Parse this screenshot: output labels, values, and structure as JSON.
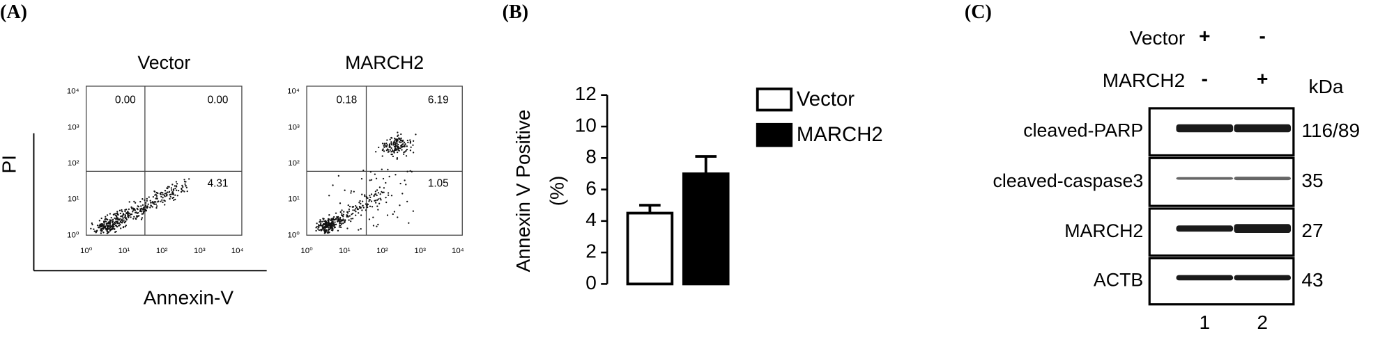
{
  "panel_labels": [
    "(A)",
    "(B)",
    "(C)"
  ],
  "panel_a": {
    "y_label": "PI",
    "x_label": "Annexin-V",
    "ticks": [
      "10⁰",
      "10¹",
      "10²",
      "10³",
      "10⁴"
    ],
    "plots": [
      {
        "title": "Vector",
        "quadrants": [
          "0.00",
          "0.00",
          "4.31"
        ]
      },
      {
        "title": "MARCH2",
        "quadrants": [
          "0.18",
          "6.19",
          "1.05"
        ]
      }
    ]
  },
  "chart_data": {
    "type": "bar",
    "ylabel": [
      "Annexin V Positive",
      "(%)"
    ],
    "ylim": [
      0,
      12
    ],
    "yticks": [
      0,
      2,
      4,
      6,
      8,
      10,
      12
    ],
    "legend": "top-right",
    "series": [
      {
        "name": "Vector",
        "color": "#ffffff",
        "values": [
          4.5
        ],
        "errors": [
          0.5
        ]
      },
      {
        "name": "MARCH2",
        "color": "#000000",
        "values": [
          7.0
        ],
        "errors": [
          1.1
        ]
      }
    ]
  },
  "panel_c": {
    "conditions": [
      {
        "label": "Vector",
        "lanes": [
          "+",
          "-"
        ]
      },
      {
        "label": "MARCH2",
        "lanes": [
          "-",
          "+"
        ]
      }
    ],
    "kda_header": "kDa",
    "blots": [
      {
        "label": "cleaved-PARP",
        "kda": "116/89"
      },
      {
        "label": "cleaved-caspase3",
        "kda": "35"
      },
      {
        "label": "MARCH2",
        "kda": "27"
      },
      {
        "label": "ACTB",
        "kda": "43"
      }
    ],
    "lane_numbers": [
      "1",
      "2"
    ]
  }
}
